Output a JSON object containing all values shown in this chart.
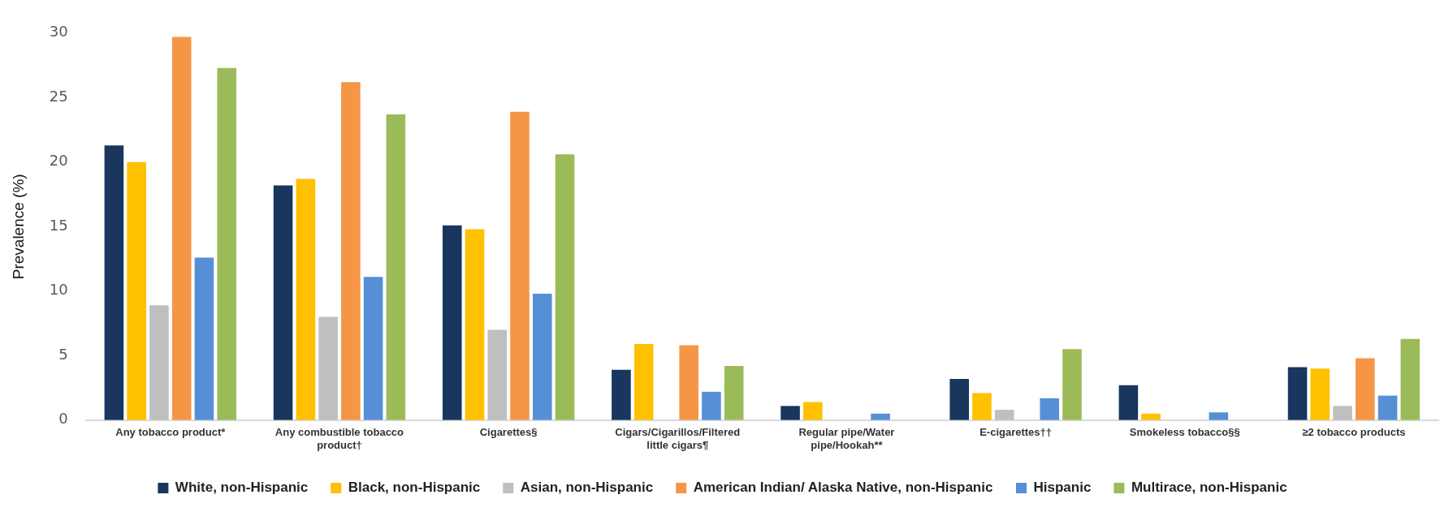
{
  "chart_data": {
    "type": "bar",
    "ylabel": "Prevalence (%)",
    "categories": [
      "Any tobacco product*",
      "Any combustible tobacco product†",
      "Cigarettes§",
      "Cigars/Cigarillos/Filtered little cigars¶",
      "Regular pipe/Water pipe/Hookah**",
      "E-cigarettes††",
      "Smokeless tobacco§§",
      "≥2 tobacco products"
    ],
    "series": [
      {
        "name": "White, non-Hispanic",
        "color": "#18365e",
        "values": [
          21.3,
          18.2,
          15.1,
          3.9,
          1.1,
          3.2,
          2.7,
          4.1
        ]
      },
      {
        "name": "Black, non-Hispanic",
        "color": "#ffc000",
        "values": [
          20.0,
          18.7,
          14.8,
          5.9,
          1.4,
          2.1,
          0.5,
          4.0
        ]
      },
      {
        "name": "Asian, non-Hispanic",
        "color": "#bfbfbf",
        "values": [
          8.9,
          8.0,
          7.0,
          null,
          null,
          0.8,
          null,
          1.1
        ]
      },
      {
        "name": "American Indian/ Alaska Native, non-Hispanic",
        "color": "#f59647",
        "values": [
          29.7,
          26.2,
          23.9,
          5.8,
          null,
          null,
          null,
          4.8
        ]
      },
      {
        "name": "Hispanic",
        "color": "#568fd5",
        "values": [
          12.6,
          11.1,
          9.8,
          2.2,
          0.5,
          1.7,
          0.6,
          1.9
        ]
      },
      {
        "name": "Multirace, non-Hispanic",
        "color": "#9bbb59",
        "values": [
          27.3,
          23.7,
          20.6,
          4.2,
          null,
          5.5,
          null,
          6.3
        ]
      }
    ],
    "ylim": [
      0,
      30
    ],
    "yticks": [
      0,
      5,
      10,
      15,
      20,
      25,
      30
    ],
    "grid": false,
    "legend": "bottom"
  }
}
